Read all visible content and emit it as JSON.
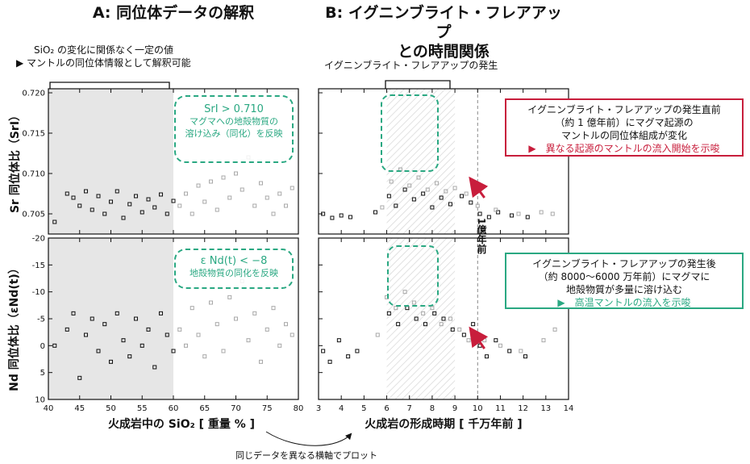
{
  "titles": {
    "panel_a": "A: 同位体データの解釈",
    "panel_b_line1": "B: イグニンブライト・フレアアップ",
    "panel_b_line2": "との時間関係"
  },
  "notes": {
    "sio2_note_line1": "SiO₂ の変化に関係なく一定の値",
    "sio2_note_line2": "▶ マントルの同位体情報として解釈可能",
    "flareup_label": "イグニンブライト・フレアアップの発生",
    "x_axis_link": "同じデータを異なる横軸でプロット",
    "age_marker": "1億年前"
  },
  "callouts": {
    "srl_line1": "SrI > 0.710",
    "srl_line2": "マグマへの地殻物質の",
    "srl_line3": "溶け込み（同化）を反映",
    "end_line1": "ε Nd(t) < −8",
    "end_line2": "地殻物質の同化を反映",
    "red_line1": "イグニンブライト・フレアアップの発生直前",
    "red_line2": "（約 1 億年前）にマグマ起源の",
    "red_line3": "マントルの同位体組成が変化",
    "red_line4": "▶　異なる起源のマントルの流入開始を示唆",
    "green_line1": "イグニンブライト・フレアアップの発生後",
    "green_line2": "（約 8000〜6000 万年前）にマグマに",
    "green_line3": "地殻物質が多量に溶け込む",
    "green_line4": "▶　高温マントルの流入を示唆"
  },
  "colors": {
    "red": "#c81e3c",
    "green": "#2aa882",
    "shade": "#e6e6e6",
    "grey_point": "#a8a8a8"
  },
  "chart_data": [
    {
      "type": "scatter",
      "panel": "A-top",
      "xlabel": "",
      "ylabel": "Sr 同位体比（SrI）",
      "xlim": [
        40,
        80
      ],
      "ylim": [
        0.7025,
        0.7205
      ],
      "yticks": [
        0.705,
        0.71,
        0.715,
        0.72
      ],
      "ytick_labels": [
        "0.705",
        "0.710",
        "0.715",
        "0.720"
      ],
      "shaded_x_range": [
        40,
        60
      ],
      "series": [
        {
          "style": "black",
          "points": [
            [
              41,
              0.704
            ],
            [
              43,
              0.7075
            ],
            [
              44,
              0.707
            ],
            [
              45,
              0.706
            ],
            [
              46,
              0.7078
            ],
            [
              47,
              0.7055
            ],
            [
              48,
              0.7072
            ],
            [
              49,
              0.705
            ],
            [
              50,
              0.7065
            ],
            [
              51,
              0.7078
            ],
            [
              52,
              0.7045
            ],
            [
              53,
              0.7062
            ],
            [
              54,
              0.7072
            ],
            [
              55,
              0.7052
            ],
            [
              56,
              0.7068
            ],
            [
              57,
              0.7058
            ],
            [
              58,
              0.7074
            ],
            [
              59,
              0.705
            ],
            [
              60,
              0.7066
            ]
          ]
        },
        {
          "style": "grey",
          "points": [
            [
              61,
              0.706
            ],
            [
              62,
              0.7075
            ],
            [
              63,
              0.705
            ],
            [
              64,
              0.7085
            ],
            [
              65,
              0.7065
            ],
            [
              66,
              0.709
            ],
            [
              67,
              0.7055
            ],
            [
              68,
              0.7095
            ],
            [
              69,
              0.707
            ],
            [
              70,
              0.71
            ],
            [
              71,
              0.708
            ],
            [
              72,
              0.712
            ],
            [
              73,
              0.706
            ],
            [
              74,
              0.7088
            ],
            [
              75,
              0.707
            ],
            [
              76,
              0.705
            ],
            [
              77,
              0.7075
            ],
            [
              78,
              0.706
            ],
            [
              79,
              0.7082
            ]
          ]
        }
      ]
    },
    {
      "type": "scatter",
      "panel": "A-bottom",
      "xlabel": "火成岩中の SiO₂ [ 重量 % ]",
      "ylabel": "Nd 同位体比（εNd(t)）",
      "xlim": [
        40,
        80
      ],
      "ylim": [
        -20,
        10
      ],
      "y_inverted": true,
      "xticks": [
        40,
        45,
        50,
        55,
        60,
        65,
        70,
        75,
        80
      ],
      "xtick_labels": [
        "40",
        "45",
        "50",
        "55",
        "60",
        "65",
        "70",
        "75",
        "80"
      ],
      "yticks": [
        -20,
        -15,
        -10,
        -5,
        0,
        5,
        10
      ],
      "ytick_labels": [
        "-20",
        "-15",
        "-10",
        "-5",
        "0",
        "5",
        "10"
      ],
      "shaded_x_range": [
        40,
        60
      ],
      "series": [
        {
          "style": "black",
          "points": [
            [
              41,
              0
            ],
            [
              43,
              -3
            ],
            [
              44,
              -6
            ],
            [
              45,
              6
            ],
            [
              46,
              -2
            ],
            [
              47,
              -5
            ],
            [
              48,
              1
            ],
            [
              49,
              -4
            ],
            [
              50,
              3
            ],
            [
              51,
              -6
            ],
            [
              52,
              -1
            ],
            [
              53,
              2
            ],
            [
              54,
              -5
            ],
            [
              55,
              0
            ],
            [
              56,
              -3
            ],
            [
              57,
              4
            ],
            [
              58,
              -6
            ],
            [
              59,
              -2
            ],
            [
              60,
              1
            ]
          ]
        },
        {
          "style": "grey",
          "points": [
            [
              61,
              -3
            ],
            [
              62,
              0
            ],
            [
              63,
              -7
            ],
            [
              64,
              -2
            ],
            [
              65,
              2
            ],
            [
              66,
              -8
            ],
            [
              67,
              -4
            ],
            [
              68,
              1
            ],
            [
              69,
              -9
            ],
            [
              70,
              -5
            ],
            [
              71,
              -12
            ],
            [
              72,
              -1
            ],
            [
              73,
              -6
            ],
            [
              74,
              3
            ],
            [
              75,
              -3
            ],
            [
              76,
              -7
            ],
            [
              77,
              0
            ],
            [
              78,
              -4
            ],
            [
              79,
              -2
            ]
          ]
        }
      ]
    },
    {
      "type": "scatter",
      "panel": "B-top",
      "xlabel": "",
      "ylabel": "",
      "xlim": [
        3,
        14
      ],
      "ylim": [
        0.7025,
        0.7205
      ],
      "highlight_x_range": [
        6,
        9
      ],
      "marker_x": 10,
      "series": [
        {
          "style": "black",
          "points": [
            [
              3.2,
              0.705
            ],
            [
              3.6,
              0.7045
            ],
            [
              4.0,
              0.7048
            ],
            [
              4.4,
              0.7046
            ],
            [
              5.5,
              0.7052
            ],
            [
              6.1,
              0.7072
            ],
            [
              6.4,
              0.706
            ],
            [
              6.8,
              0.708
            ],
            [
              7.2,
              0.7068
            ],
            [
              7.6,
              0.7075
            ],
            [
              8.0,
              0.7058
            ],
            [
              8.4,
              0.707
            ],
            [
              8.8,
              0.7062
            ],
            [
              9.3,
              0.7072
            ],
            [
              9.7,
              0.7064
            ],
            [
              10.1,
              0.705
            ],
            [
              10.5,
              0.7046
            ],
            [
              10.9,
              0.7052
            ],
            [
              11.5,
              0.7048
            ],
            [
              12.2,
              0.7046
            ]
          ]
        },
        {
          "style": "grey",
          "points": [
            [
              5.8,
              0.7058
            ],
            [
              6.2,
              0.709
            ],
            [
              6.6,
              0.7105
            ],
            [
              7.0,
              0.7085
            ],
            [
              7.4,
              0.7095
            ],
            [
              7.8,
              0.708
            ],
            [
              8.2,
              0.7088
            ],
            [
              8.6,
              0.7078
            ],
            [
              9.0,
              0.7082
            ],
            [
              9.5,
              0.7075
            ],
            [
              10.0,
              0.706
            ],
            [
              10.8,
              0.7055
            ],
            [
              11.8,
              0.705
            ],
            [
              12.8,
              0.7052
            ],
            [
              13.3,
              0.705
            ]
          ]
        }
      ]
    },
    {
      "type": "scatter",
      "panel": "B-bottom",
      "xlabel": "火成岩の形成時期 [ 千万年前 ]",
      "ylabel": "",
      "xlim": [
        3,
        14
      ],
      "ylim": [
        -20,
        10
      ],
      "y_inverted": true,
      "xticks": [
        3,
        4,
        5,
        6,
        7,
        8,
        9,
        10,
        11,
        12,
        13,
        14
      ],
      "xtick_labels": [
        "3",
        "4",
        "5",
        "6",
        "7",
        "8",
        "9",
        "10",
        "11",
        "12",
        "13",
        "14"
      ],
      "highlight_x_range": [
        6,
        9
      ],
      "marker_x": 10,
      "series": [
        {
          "style": "black",
          "points": [
            [
              3.2,
              1
            ],
            [
              3.5,
              3
            ],
            [
              3.9,
              -1
            ],
            [
              4.3,
              2
            ],
            [
              4.7,
              1
            ],
            [
              6.1,
              -6
            ],
            [
              6.5,
              -4
            ],
            [
              6.9,
              -7
            ],
            [
              7.3,
              -5
            ],
            [
              7.7,
              -4
            ],
            [
              8.1,
              -6
            ],
            [
              8.5,
              -5
            ],
            [
              8.9,
              -3
            ],
            [
              9.4,
              -2
            ],
            [
              9.8,
              -4
            ],
            [
              10.1,
              0
            ],
            [
              10.4,
              2
            ],
            [
              10.8,
              -1
            ],
            [
              11.4,
              1
            ],
            [
              12.1,
              2
            ]
          ]
        },
        {
          "style": "grey",
          "points": [
            [
              5.6,
              -2
            ],
            [
              6.0,
              -9
            ],
            [
              6.4,
              -7
            ],
            [
              6.8,
              -10
            ],
            [
              7.2,
              -8
            ],
            [
              7.6,
              -6
            ],
            [
              8.0,
              -7
            ],
            [
              8.4,
              -4
            ],
            [
              8.8,
              -5
            ],
            [
              9.2,
              -3
            ],
            [
              9.6,
              -1
            ],
            [
              10.3,
              -1
            ],
            [
              11.0,
              0
            ],
            [
              11.9,
              1
            ],
            [
              12.9,
              -1
            ],
            [
              13.4,
              -3
            ]
          ]
        }
      ]
    }
  ]
}
